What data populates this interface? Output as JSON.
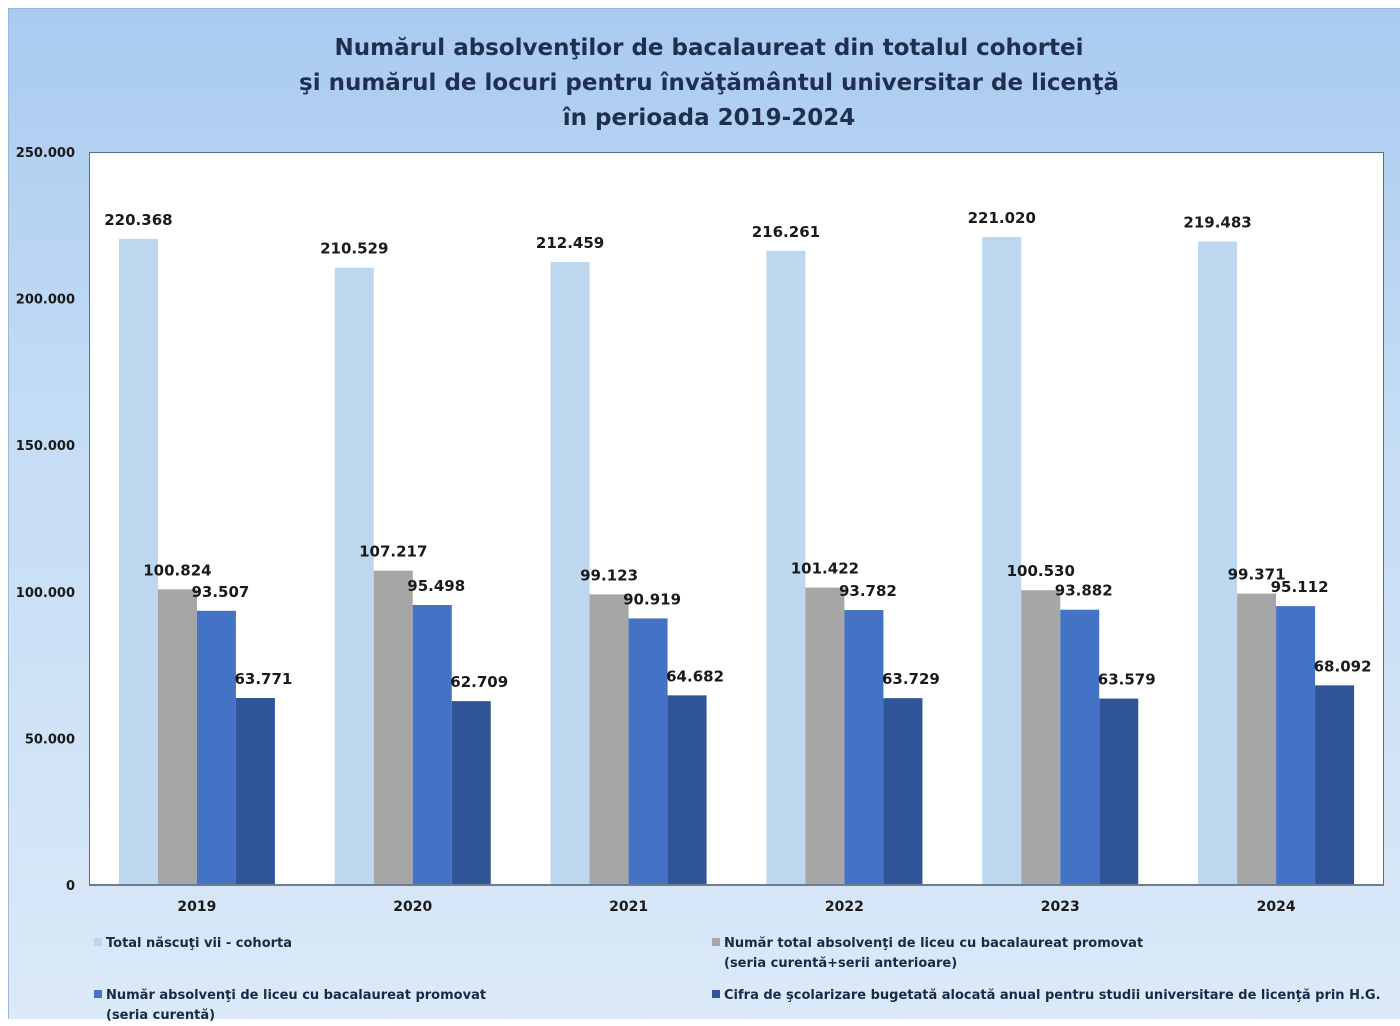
{
  "chart_data": {
    "type": "bar",
    "title_lines": [
      "Numărul absolvenţilor de bacalaureat din totalul cohortei",
      "şi numărul de locuri pentru învăţământul universitar de licenţă",
      "în perioada 2019-2024"
    ],
    "categories": [
      "2019",
      "2020",
      "2021",
      "2022",
      "2023",
      "2024"
    ],
    "ylim": [
      0,
      250000
    ],
    "yticks": [
      0,
      50000,
      100000,
      150000,
      200000,
      250000
    ],
    "ytick_labels": [
      "0",
      "50.000",
      "100.000",
      "150.000",
      "200.000",
      "250.000"
    ],
    "grid": false,
    "legend_position": "bottom",
    "series": [
      {
        "name": "Total născuţi vii - cohorta",
        "color": "#bdd7ee",
        "values": [
          220368,
          210529,
          212459,
          216261,
          221020,
          219483
        ],
        "labels": [
          "220.368",
          "210.529",
          "212.459",
          "216.261",
          "221.020",
          "219.483"
        ]
      },
      {
        "name": "Număr total absolvenţi de liceu cu bacalaureat promovat",
        "name_line2": "(seria curentă+serii anterioare)",
        "color": "#a6a6a6",
        "values": [
          100824,
          107217,
          99123,
          101422,
          100530,
          99371
        ],
        "labels": [
          "100.824",
          "107.217",
          "99.123",
          "101.422",
          "100.530",
          "99.371"
        ]
      },
      {
        "name": "Număr absolvenţi de liceu cu bacalaureat promovat",
        "name_line2": "(seria curentă)",
        "color": "#4472c4",
        "values": [
          93507,
          95498,
          90919,
          93782,
          93882,
          95112
        ],
        "labels": [
          "93.507",
          "95.498",
          "90.919",
          "93.782",
          "93.882",
          "95.112"
        ]
      },
      {
        "name": "Cifra de şcolarizare bugetată alocată anual pentru studii universitare de licenţă prin H.G.",
        "color": "#2f5597",
        "values": [
          63771,
          62709,
          64682,
          63729,
          63579,
          68092
        ],
        "labels": [
          "63.771",
          "62.709",
          "64.682",
          "63.729",
          "63.579",
          "68.092"
        ]
      }
    ]
  }
}
